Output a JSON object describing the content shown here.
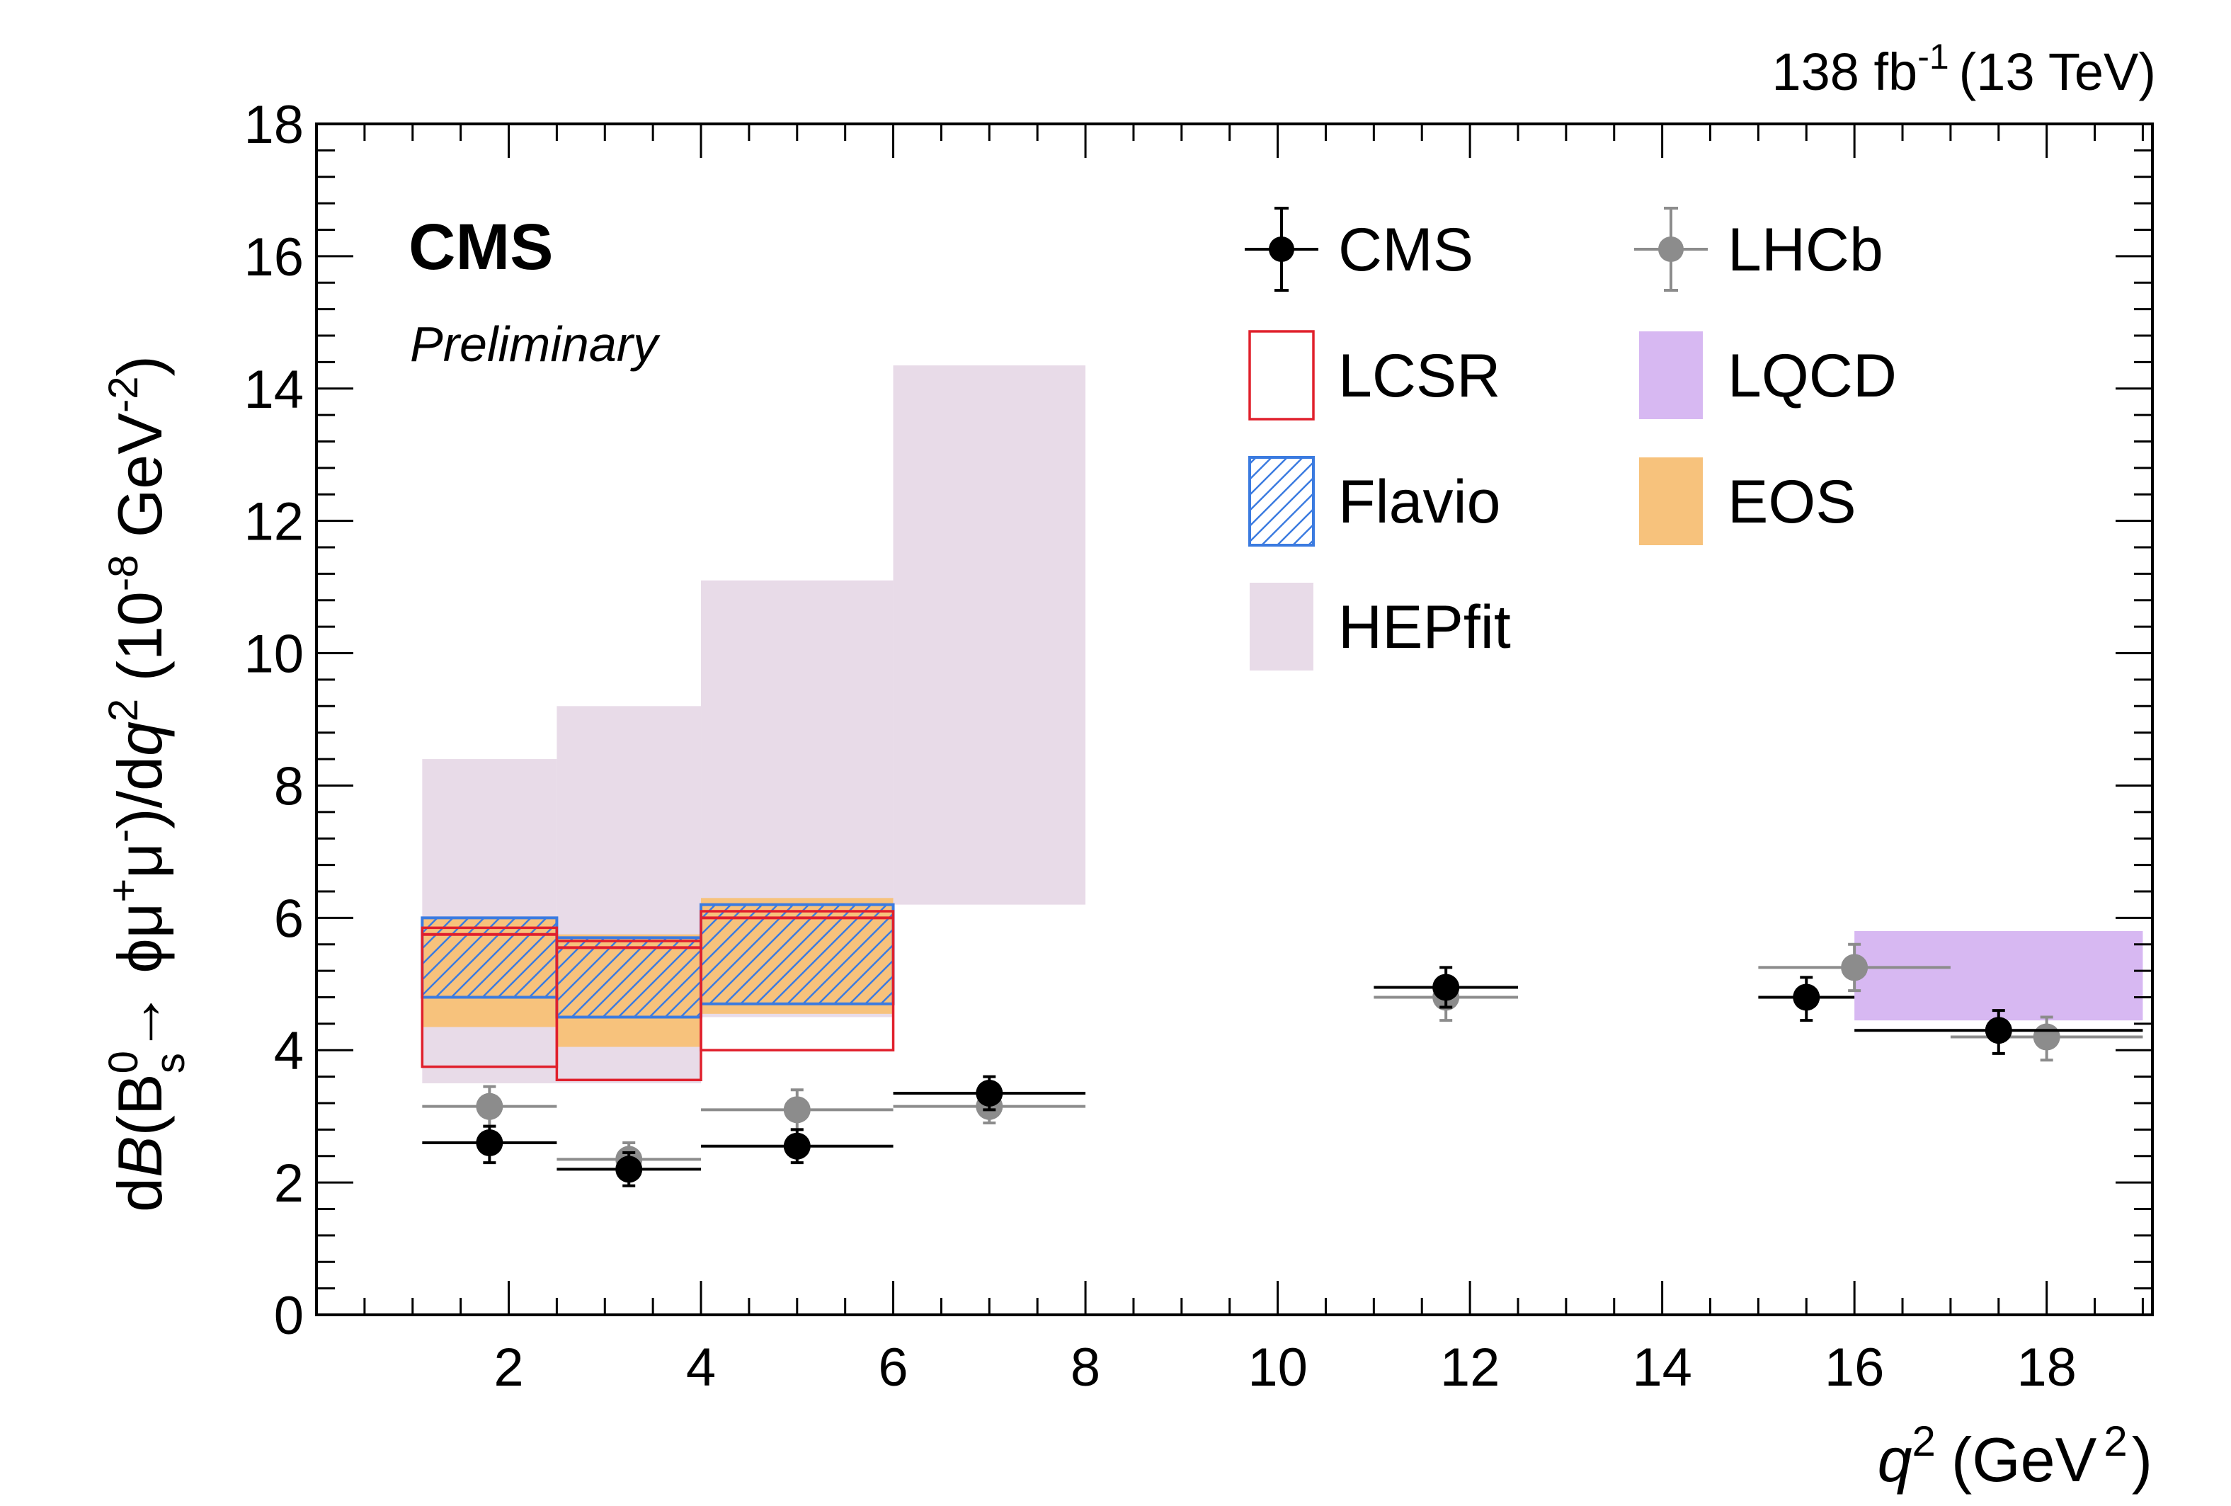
{
  "chart_data": {
    "type": "scatter",
    "title": "",
    "cms_label": "CMS",
    "status_label": "Preliminary",
    "lumi_label": {
      "main": "138 fb",
      "sup": "-1",
      "energy": "(13 TeV)"
    },
    "xlabel": {
      "var": "q",
      "sup": "2",
      "unit_open": "(GeV",
      "unit_sup": "2",
      "unit_close": ")"
    },
    "ylabel": {
      "part1": "d",
      "B_italic": "B",
      "part2": "(B",
      "B_sup": "0",
      "B_sub": "s",
      "arrow": "→ ϕμ",
      "mu_plus": "+",
      "mu_minus_base": "μ",
      "mu_minus": "-",
      "part3": ")/d",
      "q_italic": "q",
      "q_sup": "2",
      "units_open": " (10",
      "units_exp": "-8",
      "units_mid": "  GeV",
      "units_exp2": "-2",
      "units_close": ")"
    },
    "xlim": [
      0,
      19.1
    ],
    "ylim": [
      0,
      18
    ],
    "xticks": [
      2,
      4,
      6,
      8,
      10,
      12,
      14,
      16,
      18
    ],
    "yticks": [
      0,
      2,
      4,
      6,
      8,
      10,
      12,
      14,
      16,
      18
    ],
    "x_minor_step": 0.5,
    "y_minor_step": 0.4,
    "colors": {
      "cms": "#000000",
      "lhcb": "#8c8c8c",
      "lcsr": "#e0202c",
      "flavio": "#3b7be0",
      "lqcd": "#d7b8f2",
      "eos": "#f7c27c",
      "hepfit": "#e8dbe8"
    },
    "legend": {
      "position": "top-right",
      "entries": [
        {
          "key": "cms",
          "label": "CMS",
          "style": "marker"
        },
        {
          "key": "lhcb",
          "label": "LHCb",
          "style": "marker"
        },
        {
          "key": "lcsr",
          "label": "LCSR",
          "style": "box-outline"
        },
        {
          "key": "lqcd",
          "label": "LQCD",
          "style": "box-fill"
        },
        {
          "key": "flavio",
          "label": "Flavio",
          "style": "box-hatch"
        },
        {
          "key": "eos",
          "label": "EOS",
          "style": "box-fill"
        },
        {
          "key": "hepfit",
          "label": "HEPfit",
          "style": "box-fill"
        }
      ]
    },
    "series": [
      {
        "name": "HEPfit",
        "kind": "band",
        "bins": [
          {
            "xlo": 1.1,
            "xhi": 2.5,
            "ylo": 3.5,
            "yhi": 8.4
          },
          {
            "xlo": 2.5,
            "xhi": 4.0,
            "ylo": 3.5,
            "yhi": 9.2
          },
          {
            "xlo": 4.0,
            "xhi": 6.0,
            "ylo": 4.5,
            "yhi": 11.1
          },
          {
            "xlo": 6.0,
            "xhi": 8.0,
            "ylo": 6.2,
            "yhi": 14.35
          }
        ]
      },
      {
        "name": "EOS",
        "kind": "band",
        "bins": [
          {
            "xlo": 1.1,
            "xhi": 2.5,
            "ylo": 4.35,
            "yhi": 6.0
          },
          {
            "xlo": 2.5,
            "xhi": 4.0,
            "ylo": 4.05,
            "yhi": 5.75
          },
          {
            "xlo": 4.0,
            "xhi": 6.0,
            "ylo": 4.55,
            "yhi": 6.3
          }
        ]
      },
      {
        "name": "LCSR",
        "kind": "outline",
        "bins": [
          {
            "xlo": 1.1,
            "xhi": 2.5,
            "ylo": 3.75,
            "yhi": 5.85,
            "central": 5.75
          },
          {
            "xlo": 2.5,
            "xhi": 4.0,
            "ylo": 3.55,
            "yhi": 5.65,
            "central": 5.55
          },
          {
            "xlo": 4.0,
            "xhi": 6.0,
            "ylo": 4.0,
            "yhi": 6.1,
            "central": 6.0
          }
        ]
      },
      {
        "name": "Flavio",
        "kind": "hatch",
        "bins": [
          {
            "xlo": 1.1,
            "xhi": 2.5,
            "ylo": 4.8,
            "yhi": 6.0
          },
          {
            "xlo": 2.5,
            "xhi": 4.0,
            "ylo": 4.5,
            "yhi": 5.7
          },
          {
            "xlo": 4.0,
            "xhi": 6.0,
            "ylo": 4.7,
            "yhi": 6.2
          }
        ]
      },
      {
        "name": "LQCD",
        "kind": "band",
        "bins": [
          {
            "xlo": 16.0,
            "xhi": 19.0,
            "ylo": 4.45,
            "yhi": 5.8
          }
        ]
      },
      {
        "name": "LHCb",
        "kind": "points",
        "points": [
          {
            "x": 1.8,
            "y": 3.15,
            "xlo": 1.1,
            "xhi": 2.5,
            "ylo": 2.85,
            "yhi": 3.45
          },
          {
            "x": 3.25,
            "y": 2.35,
            "xlo": 2.5,
            "xhi": 4.0,
            "ylo": 2.1,
            "yhi": 2.6
          },
          {
            "x": 5.0,
            "y": 3.1,
            "xlo": 4.0,
            "xhi": 6.0,
            "ylo": 2.8,
            "yhi": 3.4
          },
          {
            "x": 7.0,
            "y": 3.15,
            "xlo": 6.0,
            "xhi": 8.0,
            "ylo": 2.9,
            "yhi": 3.4
          },
          {
            "x": 11.75,
            "y": 4.8,
            "xlo": 11.0,
            "xhi": 12.5,
            "ylo": 4.45,
            "yhi": 5.1
          },
          {
            "x": 16.0,
            "y": 5.25,
            "xlo": 15.0,
            "xhi": 17.0,
            "ylo": 4.9,
            "yhi": 5.6
          },
          {
            "x": 18.0,
            "y": 4.2,
            "xlo": 17.0,
            "xhi": 19.0,
            "ylo": 3.85,
            "yhi": 4.5
          }
        ]
      },
      {
        "name": "CMS",
        "kind": "points",
        "points": [
          {
            "x": 1.8,
            "y": 2.6,
            "xlo": 1.1,
            "xhi": 2.5,
            "ylo": 2.3,
            "yhi": 2.85
          },
          {
            "x": 3.25,
            "y": 2.2,
            "xlo": 2.5,
            "xhi": 4.0,
            "ylo": 1.95,
            "yhi": 2.45
          },
          {
            "x": 5.0,
            "y": 2.55,
            "xlo": 4.0,
            "xhi": 6.0,
            "ylo": 2.3,
            "yhi": 2.8
          },
          {
            "x": 7.0,
            "y": 3.35,
            "xlo": 6.0,
            "xhi": 8.0,
            "ylo": 3.1,
            "yhi": 3.6
          },
          {
            "x": 11.75,
            "y": 4.95,
            "xlo": 11.0,
            "xhi": 12.5,
            "ylo": 4.65,
            "yhi": 5.25
          },
          {
            "x": 15.5,
            "y": 4.8,
            "xlo": 15.0,
            "xhi": 16.0,
            "ylo": 4.45,
            "yhi": 5.1
          },
          {
            "x": 17.5,
            "y": 4.3,
            "xlo": 16.0,
            "xhi": 19.0,
            "ylo": 3.95,
            "yhi": 4.6
          }
        ]
      }
    ]
  }
}
